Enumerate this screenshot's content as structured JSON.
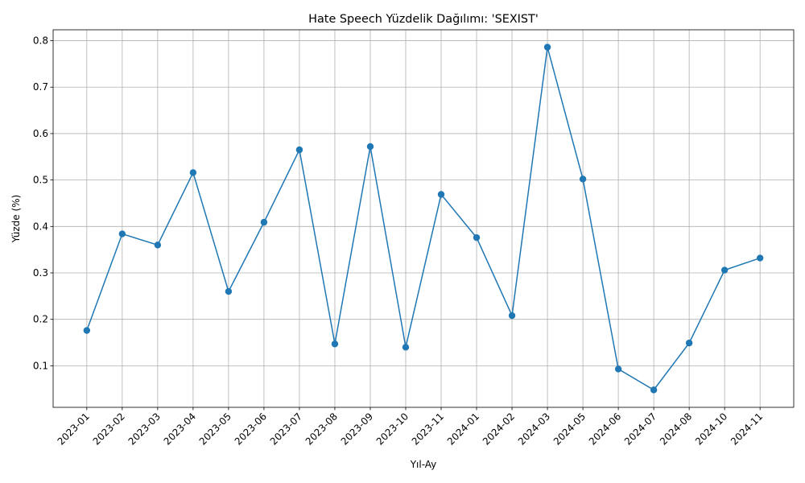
{
  "chart_data": {
    "type": "line",
    "title": "Hate Speech Yüzdelik Dağılımı: 'SEXIST'",
    "xlabel": "Yıl-Ay",
    "ylabel": "Yüzde (%)",
    "categories": [
      "2023-01",
      "2023-02",
      "2023-03",
      "2023-04",
      "2023-05",
      "2023-06",
      "2023-07",
      "2023-08",
      "2023-09",
      "2023-10",
      "2023-11",
      "2024-01",
      "2024-02",
      "2024-03",
      "2024-05",
      "2024-06",
      "2024-07",
      "2024-08",
      "2024-10",
      "2024-11"
    ],
    "series": [
      {
        "name": "SEXIST",
        "color": "#1f77b4",
        "values": [
          0.176,
          0.384,
          0.36,
          0.516,
          0.26,
          0.409,
          0.565,
          0.147,
          0.572,
          0.14,
          0.469,
          0.376,
          0.208,
          0.786,
          0.502,
          0.093,
          0.048,
          0.149,
          0.306,
          0.332
        ]
      }
    ],
    "ylim": [
      0.0105,
      0.8235
    ],
    "yticks": [
      0.1,
      0.2,
      0.3,
      0.4,
      0.5,
      0.6,
      0.7,
      0.8
    ],
    "ytick_labels": [
      "0.1",
      "0.2",
      "0.3",
      "0.4",
      "0.5",
      "0.6",
      "0.7",
      "0.8"
    ],
    "grid": true,
    "marker": "circle"
  }
}
